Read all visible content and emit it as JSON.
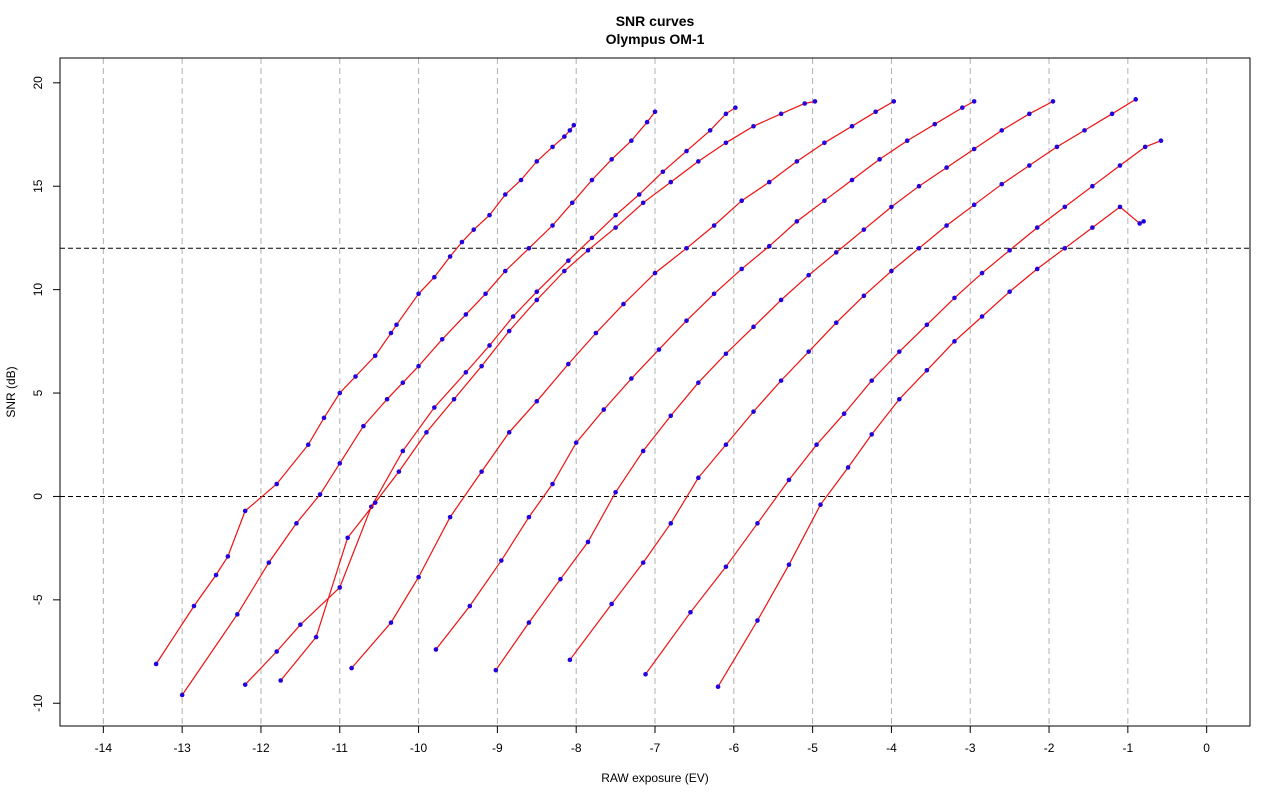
{
  "chart_data": {
    "type": "line",
    "title": "SNR curves",
    "subtitle": "Olympus OM-1",
    "xlabel": "RAW exposure (EV)",
    "ylabel": "SNR (dB)",
    "xlim": [
      -14.55,
      0.55
    ],
    "ylim": [
      -11.1,
      21.2
    ],
    "x_ticks": [
      -14,
      -13,
      -12,
      -11,
      -10,
      -9,
      -8,
      -7,
      -6,
      -5,
      -4,
      -3,
      -2,
      -1,
      0
    ],
    "y_ticks": [
      -10,
      -5,
      0,
      5,
      10,
      15,
      20
    ],
    "vertical_grid": {
      "at": [
        -14,
        -13,
        -12,
        -11,
        -10,
        -9,
        -8,
        -7,
        -6,
        -5,
        -4,
        -3,
        -2,
        -1,
        0
      ],
      "style": "dashed",
      "color": "#b0b0b0"
    },
    "reference_lines": [
      {
        "y": 12,
        "style": "dashed",
        "color": "#000000"
      },
      {
        "y": 0,
        "style": "dashed",
        "color": "#000000"
      }
    ],
    "point_color": "#2200dd",
    "fit_color": "#ee1111",
    "series": [
      {
        "x": [
          -13.33,
          -12.85,
          -12.57,
          -12.42,
          -12.2,
          -11.8,
          -11.4,
          -11.2,
          -11.0,
          -10.8,
          -10.55,
          -10.35,
          -10.28,
          -10.0,
          -9.8,
          -9.6,
          -9.45,
          -9.3,
          -9.1,
          -8.9,
          -8.7,
          -8.5,
          -8.3,
          -8.15,
          -8.08,
          -8.03
        ],
        "y": [
          -8.1,
          -5.3,
          -3.8,
          -2.9,
          -0.7,
          0.6,
          2.5,
          3.8,
          5.0,
          5.8,
          6.8,
          7.9,
          8.3,
          9.8,
          10.6,
          11.6,
          12.3,
          12.9,
          13.6,
          14.6,
          15.3,
          16.2,
          16.9,
          17.4,
          17.7,
          17.95
        ]
      },
      {
        "x": [
          -13.0,
          -12.3,
          -11.9,
          -11.55,
          -11.25,
          -11.0,
          -10.7,
          -10.4,
          -10.2,
          -10.0,
          -9.7,
          -9.4,
          -9.15,
          -8.9,
          -8.6,
          -8.3,
          -8.05,
          -7.8,
          -7.55,
          -7.3,
          -7.1,
          -7.0
        ],
        "y": [
          -9.6,
          -5.7,
          -3.2,
          -1.3,
          0.1,
          1.6,
          3.4,
          4.7,
          5.5,
          6.3,
          7.6,
          8.8,
          9.8,
          10.9,
          12.0,
          13.1,
          14.2,
          15.3,
          16.3,
          17.2,
          18.1,
          18.6
        ]
      },
      {
        "x": [
          -12.2,
          -11.8,
          -11.5,
          -11.0,
          -10.6,
          -10.2,
          -9.8,
          -9.4,
          -9.1,
          -8.8,
          -8.5,
          -8.1,
          -7.8,
          -7.5,
          -7.2,
          -6.9,
          -6.6,
          -6.3,
          -6.1,
          -5.98
        ],
        "y": [
          -9.1,
          -7.5,
          -6.2,
          -4.4,
          -0.5,
          2.2,
          4.3,
          6.0,
          7.3,
          8.7,
          9.9,
          11.4,
          12.5,
          13.6,
          14.6,
          15.7,
          16.7,
          17.7,
          18.5,
          18.8
        ]
      },
      {
        "x": [
          -11.75,
          -11.3,
          -10.9,
          -10.55,
          -10.25,
          -9.9,
          -9.55,
          -9.2,
          -8.85,
          -8.5,
          -8.15,
          -7.85,
          -7.5,
          -7.15,
          -6.8,
          -6.45,
          -6.1,
          -5.75,
          -5.4,
          -5.1,
          -4.97
        ],
        "y": [
          -8.9,
          -6.8,
          -2.0,
          -0.3,
          1.2,
          3.1,
          4.7,
          6.3,
          8.0,
          9.5,
          10.9,
          11.9,
          13.0,
          14.2,
          15.2,
          16.2,
          17.1,
          17.9,
          18.5,
          19.0,
          19.1
        ]
      },
      {
        "x": [
          -10.85,
          -10.35,
          -10.0,
          -9.6,
          -9.2,
          -8.85,
          -8.5,
          -8.1,
          -7.75,
          -7.4,
          -7.0,
          -6.6,
          -6.25,
          -5.9,
          -5.55,
          -5.2,
          -4.85,
          -4.5,
          -4.2,
          -3.97
        ],
        "y": [
          -8.3,
          -6.1,
          -3.9,
          -1.0,
          1.2,
          3.1,
          4.6,
          6.4,
          7.9,
          9.3,
          10.8,
          12.0,
          13.1,
          14.3,
          15.2,
          16.2,
          17.1,
          17.9,
          18.6,
          19.1
        ]
      },
      {
        "x": [
          -9.78,
          -9.35,
          -8.95,
          -8.6,
          -8.3,
          -8.0,
          -7.65,
          -7.3,
          -6.95,
          -6.6,
          -6.25,
          -5.9,
          -5.55,
          -5.2,
          -4.85,
          -4.5,
          -4.15,
          -3.8,
          -3.45,
          -3.1,
          -2.95
        ],
        "y": [
          -7.4,
          -5.3,
          -3.1,
          -1.0,
          0.6,
          2.6,
          4.2,
          5.7,
          7.1,
          8.5,
          9.8,
          11.0,
          12.1,
          13.3,
          14.3,
          15.3,
          16.3,
          17.2,
          18.0,
          18.8,
          19.1
        ]
      },
      {
        "x": [
          -9.02,
          -8.6,
          -8.2,
          -7.85,
          -7.5,
          -7.15,
          -6.8,
          -6.45,
          -6.1,
          -5.75,
          -5.4,
          -5.05,
          -4.7,
          -4.35,
          -4.0,
          -3.65,
          -3.3,
          -2.95,
          -2.6,
          -2.25,
          -1.95
        ],
        "y": [
          -8.4,
          -6.1,
          -4.0,
          -2.2,
          0.2,
          2.2,
          3.9,
          5.5,
          6.9,
          8.2,
          9.5,
          10.7,
          11.8,
          12.9,
          14.0,
          15.0,
          15.9,
          16.8,
          17.7,
          18.5,
          19.1
        ]
      },
      {
        "x": [
          -8.08,
          -7.55,
          -7.15,
          -6.8,
          -6.45,
          -6.1,
          -5.75,
          -5.4,
          -5.05,
          -4.7,
          -4.35,
          -4.0,
          -3.65,
          -3.3,
          -2.95,
          -2.6,
          -2.25,
          -1.9,
          -1.55,
          -1.2,
          -0.9
        ],
        "y": [
          -7.9,
          -5.2,
          -3.2,
          -1.3,
          0.9,
          2.5,
          4.1,
          5.6,
          7.0,
          8.4,
          9.7,
          10.9,
          12.0,
          13.1,
          14.1,
          15.1,
          16.0,
          16.9,
          17.7,
          18.5,
          19.2
        ]
      },
      {
        "x": [
          -7.12,
          -6.55,
          -6.1,
          -5.7,
          -5.3,
          -4.95,
          -4.6,
          -4.25,
          -3.9,
          -3.55,
          -3.2,
          -2.85,
          -2.5,
          -2.15,
          -1.8,
          -1.45,
          -1.1,
          -0.78,
          -0.58
        ],
        "y": [
          -8.6,
          -5.6,
          -3.4,
          -1.3,
          0.8,
          2.5,
          4.0,
          5.6,
          7.0,
          8.3,
          9.6,
          10.8,
          11.9,
          13.0,
          14.0,
          15.0,
          16.0,
          16.9,
          17.2
        ]
      },
      {
        "x": [
          -6.2,
          -5.7,
          -5.3,
          -4.9,
          -4.55,
          -4.25,
          -3.9,
          -3.55,
          -3.2,
          -2.85,
          -2.5,
          -2.15,
          -1.8,
          -1.45,
          -1.1,
          -0.85,
          -0.8
        ],
        "y": [
          -9.2,
          -6.0,
          -3.3,
          -0.4,
          1.4,
          3.0,
          4.7,
          6.1,
          7.5,
          8.7,
          9.9,
          11.0,
          12.0,
          13.0,
          14.0,
          13.2,
          13.3
        ]
      }
    ]
  }
}
